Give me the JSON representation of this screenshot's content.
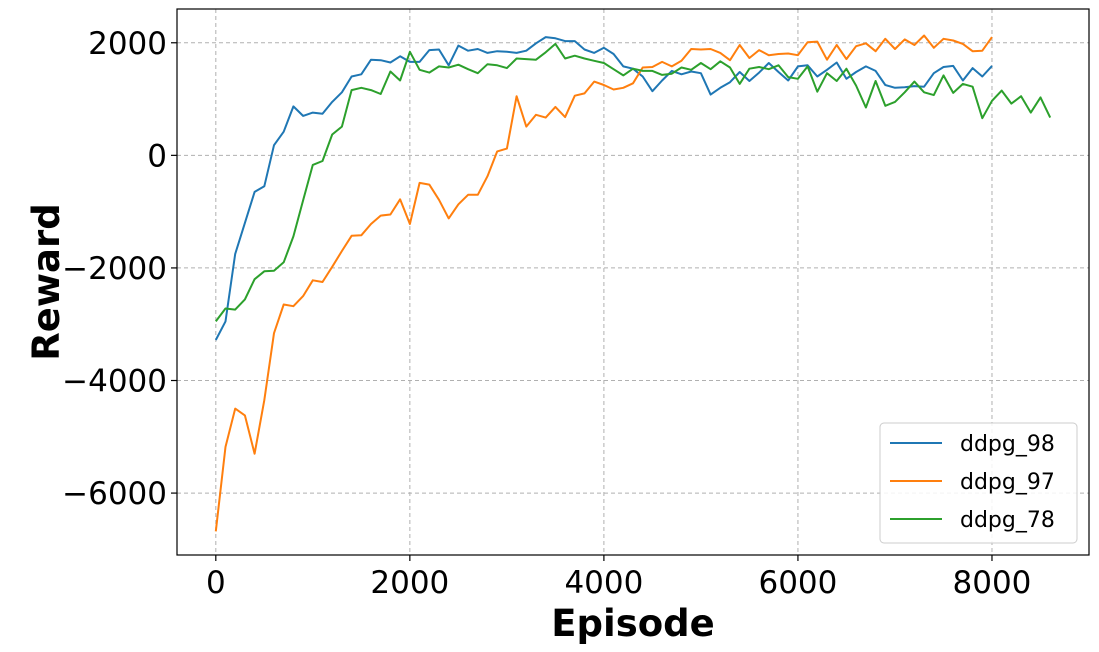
{
  "chart_data": {
    "type": "line",
    "title": "",
    "xlabel": "Episode",
    "ylabel": "Reward",
    "xlim": [
      -400,
      9000
    ],
    "ylim": [
      -7100,
      2600
    ],
    "xticks": [
      0,
      2000,
      4000,
      6000,
      8000
    ],
    "yticks": [
      -6000,
      -4000,
      -2000,
      0,
      2000
    ],
    "xtick_labels": [
      "0",
      "2000",
      "4000",
      "6000",
      "8000"
    ],
    "ytick_labels": [
      "−6000",
      "−4000",
      "−2000",
      "0",
      "2000"
    ],
    "grid": true,
    "legend_position": "lower-right",
    "series": [
      {
        "name": "ddpg_98",
        "color": "#1f77b4",
        "x": [
          0,
          100,
          200,
          300,
          400,
          500,
          600,
          700,
          800,
          900,
          1000,
          1100,
          1200,
          1300,
          1400,
          1500,
          1600,
          1700,
          1800,
          1900,
          2000,
          2100,
          2200,
          2300,
          2400,
          2500,
          2600,
          2700,
          2800,
          2900,
          3000,
          3100,
          3200,
          3300,
          3400,
          3500,
          3600,
          3700,
          3800,
          3900,
          4000,
          4100,
          4200,
          4300,
          4400,
          4500,
          4600,
          4700,
          4800,
          4900,
          5000,
          5100,
          5200,
          5300,
          5400,
          5500,
          5600,
          5700,
          5800,
          5900,
          6000,
          6100,
          6200,
          6300,
          6400,
          6500,
          6600,
          6700,
          6800,
          6900,
          7000,
          7100,
          7200,
          7300,
          7400,
          7500,
          7600,
          7700,
          7800,
          7900,
          8000
        ],
        "y": [
          -3280,
          -2950,
          -1750,
          -1200,
          -650,
          -550,
          180,
          420,
          870,
          700,
          760,
          740,
          950,
          1120,
          1400,
          1440,
          1700,
          1690,
          1650,
          1760,
          1660,
          1660,
          1870,
          1880,
          1600,
          1950,
          1860,
          1890,
          1820,
          1850,
          1840,
          1820,
          1860,
          1990,
          2100,
          2080,
          2030,
          2030,
          1880,
          1820,
          1910,
          1800,
          1580,
          1540,
          1400,
          1140,
          1330,
          1500,
          1440,
          1490,
          1460,
          1080,
          1200,
          1300,
          1480,
          1320,
          1470,
          1640,
          1480,
          1330,
          1580,
          1600,
          1400,
          1520,
          1650,
          1360,
          1480,
          1580,
          1500,
          1250,
          1200,
          1210,
          1230,
          1220,
          1460,
          1570,
          1590,
          1330,
          1550,
          1400,
          1590
        ]
      },
      {
        "name": "ddpg_97",
        "color": "#ff7f0e",
        "x": [
          0,
          100,
          200,
          300,
          400,
          500,
          600,
          700,
          800,
          900,
          1000,
          1100,
          1200,
          1300,
          1400,
          1500,
          1600,
          1700,
          1800,
          1900,
          2000,
          2100,
          2200,
          2300,
          2400,
          2500,
          2600,
          2700,
          2800,
          2900,
          3000,
          3100,
          3200,
          3300,
          3400,
          3500,
          3600,
          3700,
          3800,
          3900,
          4000,
          4100,
          4200,
          4300,
          4400,
          4500,
          4600,
          4700,
          4800,
          4900,
          5000,
          5100,
          5200,
          5300,
          5400,
          5500,
          5600,
          5700,
          5800,
          5900,
          6000,
          6100,
          6200,
          6300,
          6400,
          6500,
          6600,
          6700,
          6800,
          6900,
          7000,
          7100,
          7200,
          7300,
          7400,
          7500,
          7600,
          7700,
          7800,
          7900,
          8000
        ],
        "y": [
          -6680,
          -5180,
          -4500,
          -4620,
          -5300,
          -4350,
          -3160,
          -2650,
          -2680,
          -2500,
          -2220,
          -2250,
          -1980,
          -1700,
          -1430,
          -1420,
          -1220,
          -1070,
          -1050,
          -780,
          -1220,
          -490,
          -520,
          -790,
          -1120,
          -870,
          -700,
          -700,
          -370,
          70,
          120,
          1050,
          510,
          720,
          670,
          860,
          680,
          1060,
          1100,
          1310,
          1250,
          1170,
          1200,
          1280,
          1560,
          1570,
          1660,
          1580,
          1680,
          1890,
          1880,
          1890,
          1820,
          1690,
          1960,
          1730,
          1870,
          1780,
          1800,
          1810,
          1780,
          2010,
          2020,
          1700,
          1960,
          1710,
          1940,
          1990,
          1850,
          2070,
          1890,
          2060,
          1960,
          2130,
          1910,
          2070,
          2040,
          1980,
          1850,
          1860,
          2100
        ]
      },
      {
        "name": "ddpg_78",
        "color": "#2ca02c",
        "x": [
          0,
          100,
          200,
          300,
          400,
          500,
          600,
          700,
          800,
          900,
          1000,
          1100,
          1200,
          1300,
          1400,
          1500,
          1600,
          1700,
          1800,
          1900,
          2000,
          2100,
          2200,
          2300,
          2400,
          2500,
          2600,
          2700,
          2800,
          2900,
          3000,
          3100,
          3200,
          3300,
          3400,
          3500,
          3600,
          3700,
          3800,
          3900,
          4000,
          4100,
          4200,
          4300,
          4400,
          4500,
          4600,
          4700,
          4800,
          4900,
          5000,
          5100,
          5200,
          5300,
          5400,
          5500,
          5600,
          5700,
          5800,
          5900,
          6000,
          6100,
          6200,
          6300,
          6400,
          6500,
          6600,
          6700,
          6800,
          6900,
          7000,
          7100,
          7200,
          7300,
          7400,
          7500,
          7600,
          7700,
          7800,
          7900,
          8000,
          8100,
          8200,
          8300,
          8400,
          8500,
          8600
        ],
        "y": [
          -2950,
          -2720,
          -2740,
          -2560,
          -2200,
          -2060,
          -2050,
          -1900,
          -1440,
          -800,
          -170,
          -100,
          370,
          510,
          1160,
          1200,
          1160,
          1090,
          1490,
          1330,
          1840,
          1520,
          1470,
          1580,
          1560,
          1610,
          1530,
          1460,
          1620,
          1600,
          1550,
          1720,
          1710,
          1700,
          1830,
          1980,
          1720,
          1770,
          1720,
          1680,
          1640,
          1530,
          1420,
          1540,
          1500,
          1500,
          1430,
          1450,
          1560,
          1520,
          1640,
          1530,
          1670,
          1560,
          1270,
          1540,
          1570,
          1530,
          1600,
          1390,
          1360,
          1580,
          1130,
          1460,
          1320,
          1540,
          1240,
          850,
          1320,
          880,
          950,
          1120,
          1310,
          1120,
          1070,
          1420,
          1110,
          1270,
          1220,
          660,
          970,
          1150,
          920,
          1050,
          760,
          1030,
          670
        ]
      }
    ]
  }
}
